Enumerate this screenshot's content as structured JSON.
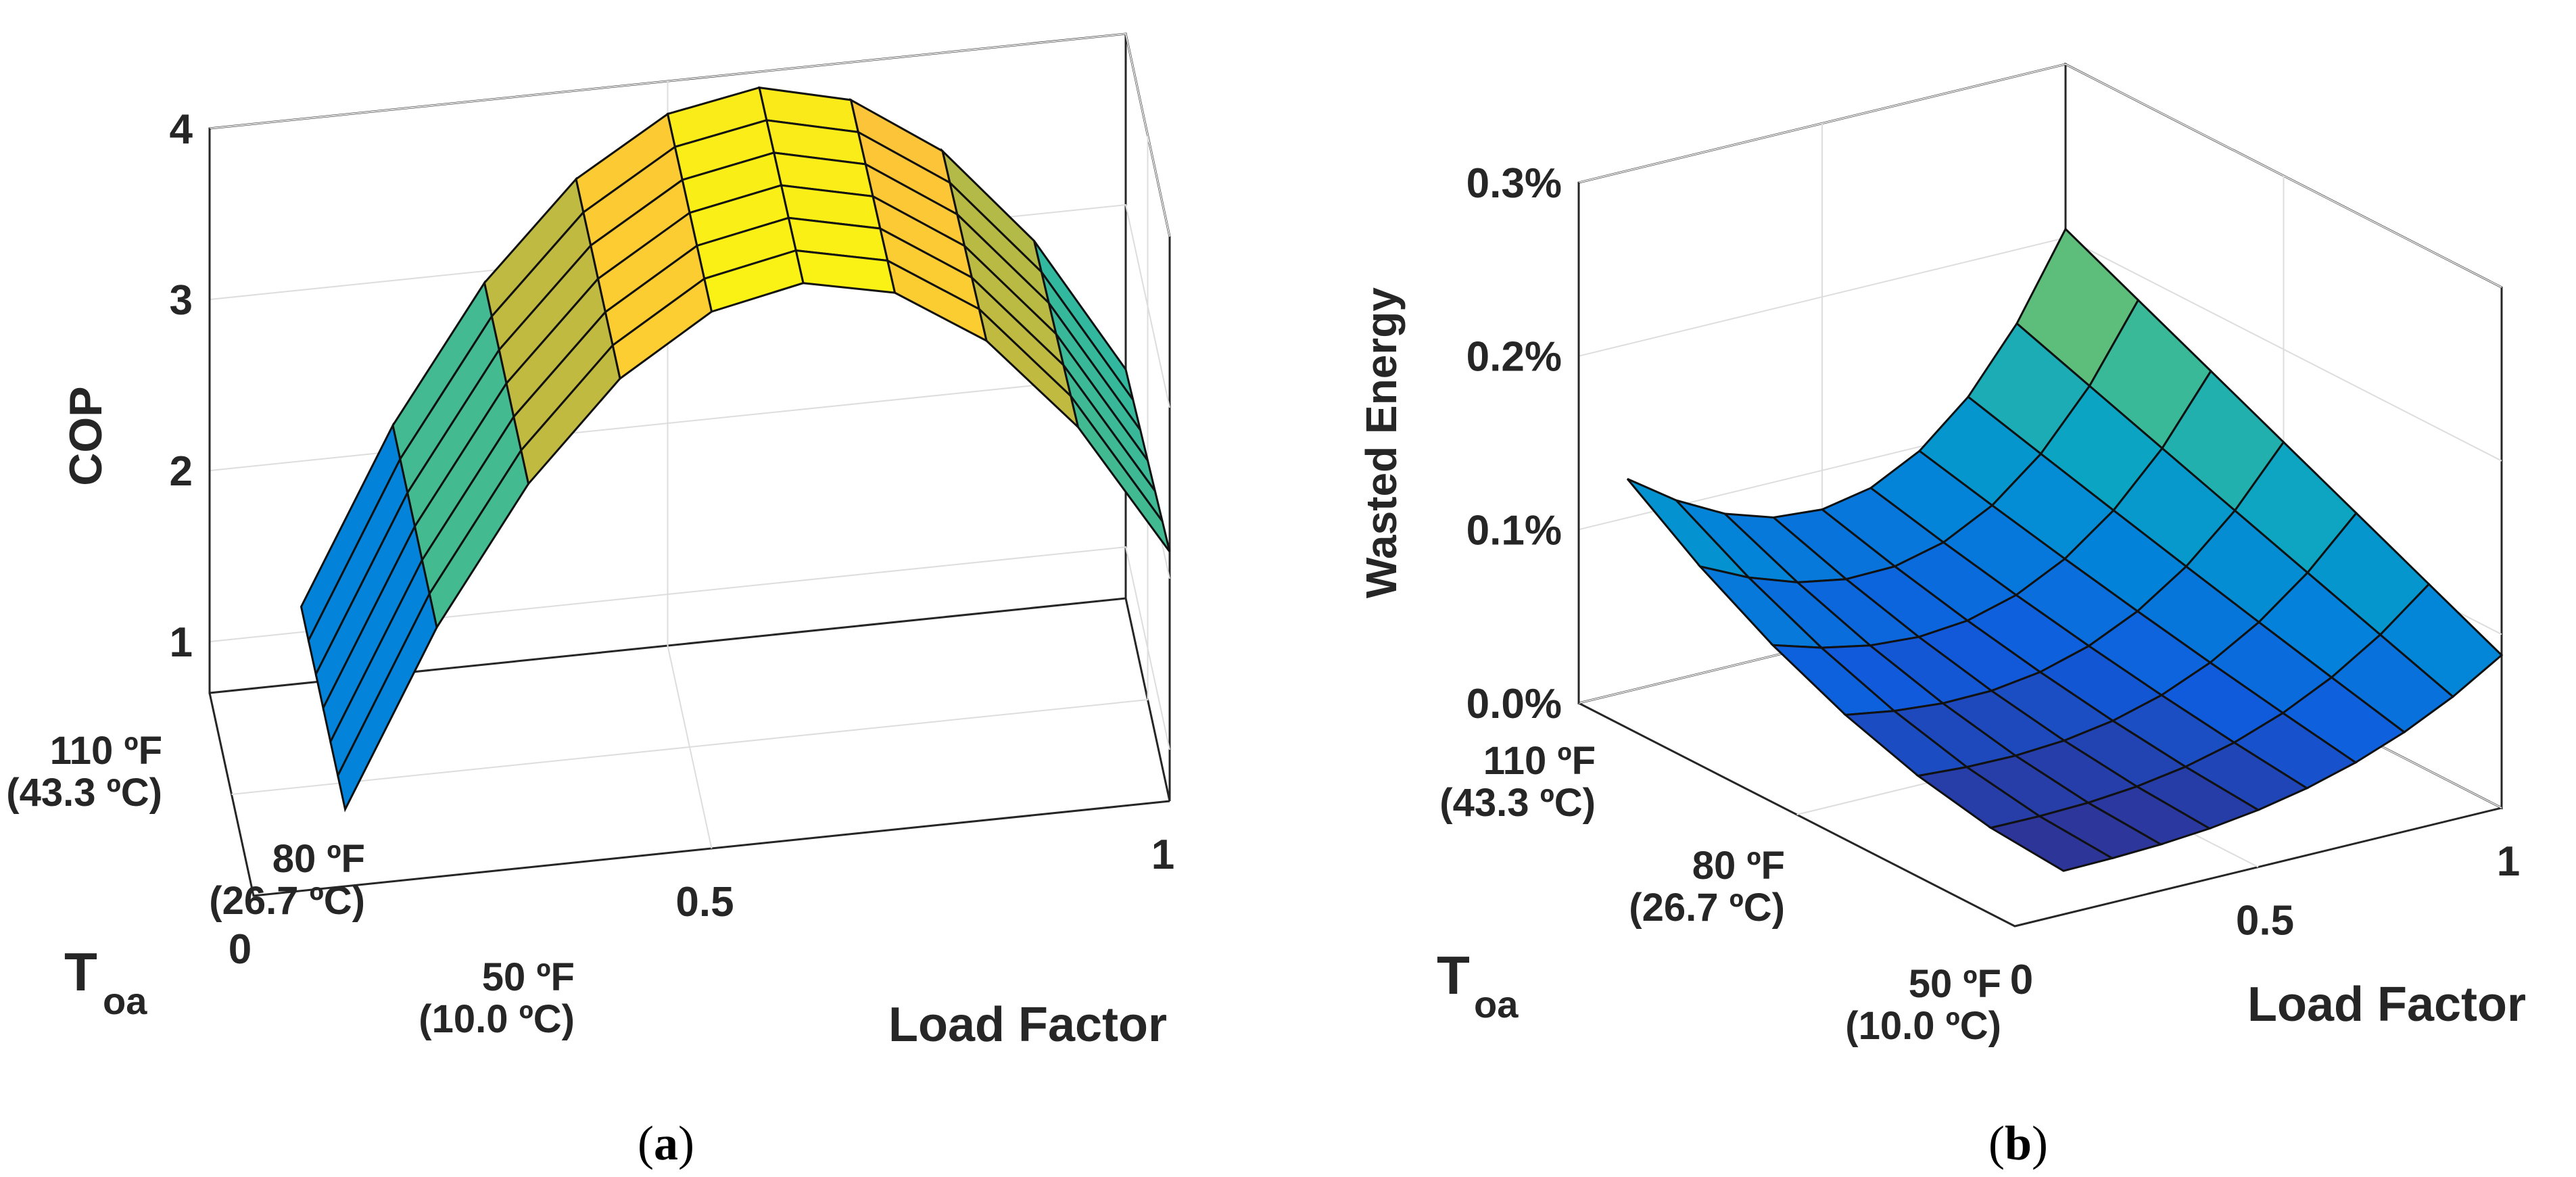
{
  "chart_data": [
    {
      "type": "surface3d",
      "panel": "a",
      "zlabel": "COP",
      "xlabel": "Load Factor",
      "ylabel": "T",
      "ylabel_sub": "oa",
      "zticks": [
        "1",
        "2",
        "3",
        "4"
      ],
      "zlim": [
        0.7,
        4
      ],
      "xticks": [
        "0",
        "0.5",
        "1"
      ],
      "xlim": [
        0,
        1
      ],
      "yticks": [
        {
          "f": "50 ºF",
          "c": "(10.0 ºC)"
        },
        {
          "f": "80 ºF",
          "c": "(26.7 ºC)"
        },
        {
          "f": "110 ºF",
          "c": "(43.3 ºC)"
        }
      ],
      "ylim": [
        50,
        110
      ],
      "load_factor": [
        0.1,
        0.2,
        0.3,
        0.4,
        0.5,
        0.6,
        0.7,
        0.8,
        0.9,
        1.0
      ],
      "toa_f": [
        50,
        60,
        70,
        80,
        90,
        100,
        110
      ],
      "grid": true
    },
    {
      "type": "surface3d",
      "panel": "b",
      "zlabel": "Wasted Energy",
      "xlabel": "Load Factor",
      "ylabel": "T",
      "ylabel_sub": "oa",
      "zticks": [
        "0.0%",
        "0.1%",
        "0.2%",
        "0.3%"
      ],
      "zlim": [
        0,
        0.3
      ],
      "xticks": [
        "0",
        "0.5",
        "1"
      ],
      "xlim": [
        0,
        1
      ],
      "yticks": [
        {
          "f": "50 ºF",
          "c": "(10.0 ºC)"
        },
        {
          "f": "80 ºF",
          "c": "(26.7 ºC)"
        },
        {
          "f": "110 ºF",
          "c": "(43.3 ºC)"
        }
      ],
      "ylim": [
        50,
        110
      ],
      "load_factor": [
        0.1,
        0.2,
        0.3,
        0.4,
        0.5,
        0.6,
        0.7,
        0.8,
        0.9,
        1.0
      ],
      "toa_f": [
        50,
        60,
        70,
        80,
        90,
        100,
        110
      ],
      "grid": true
    }
  ],
  "captions": {
    "a": {
      "open": "(",
      "letter": "a",
      "close": ")"
    },
    "b": {
      "open": "(",
      "letter": "b",
      "close": ")"
    }
  }
}
